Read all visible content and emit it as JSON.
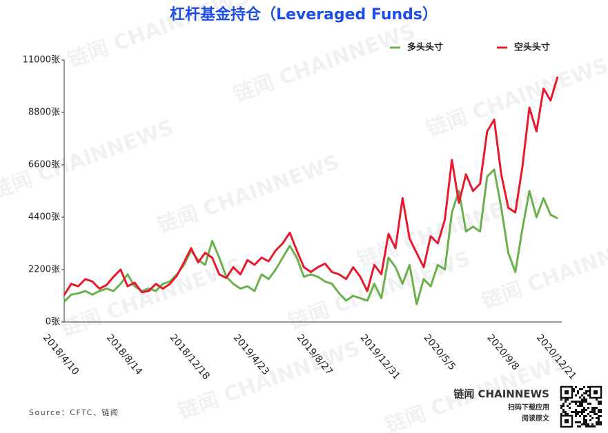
{
  "chart_data": {
    "type": "line",
    "title": "杠杆基金持仓（Leveraged Funds）",
    "categories": [
      "2018/4/10",
      null,
      null,
      null,
      null,
      null,
      null,
      null,
      null,
      "2018/8/14",
      null,
      null,
      null,
      null,
      null,
      null,
      null,
      null,
      "2018/12/18",
      null,
      null,
      null,
      null,
      null,
      null,
      null,
      null,
      "2019/4/23",
      null,
      null,
      null,
      null,
      null,
      null,
      null,
      null,
      "2019/8/27",
      null,
      null,
      null,
      null,
      null,
      null,
      null,
      null,
      "2019/12/31",
      null,
      null,
      null,
      null,
      null,
      null,
      null,
      null,
      "2020/5/5",
      null,
      null,
      null,
      null,
      null,
      null,
      null,
      null,
      "2020/9/8",
      null,
      null,
      null,
      null,
      null,
      null,
      "2020/12/21"
    ],
    "series": [
      {
        "name": "多头头寸",
        "color": "#6ab04c",
        "values": [
          850,
          1150,
          1200,
          1300,
          1150,
          1300,
          1400,
          1300,
          1600,
          2000,
          1500,
          1300,
          1400,
          1300,
          1600,
          1700,
          2000,
          2400,
          3000,
          2600,
          2400,
          3400,
          2700,
          1900,
          1600,
          1400,
          1500,
          1300,
          2000,
          1800,
          2200,
          2700,
          3200,
          2700,
          1900,
          2000,
          1900,
          1700,
          1600,
          1200,
          900,
          1100,
          1000,
          900,
          1600,
          1000,
          2700,
          2300,
          1600,
          2400,
          750,
          1800,
          1500,
          2400,
          2200,
          4600,
          5500,
          3800,
          4000,
          3800,
          6100,
          6400,
          4800,
          2900,
          2100,
          3900,
          5500,
          4400,
          5200,
          4500,
          4350
        ]
      },
      {
        "name": "空头头寸",
        "color": "#e8192c",
        "values": [
          1130,
          1600,
          1500,
          1800,
          1700,
          1400,
          1550,
          1900,
          2200,
          1500,
          1650,
          1250,
          1300,
          1600,
          1400,
          1600,
          1950,
          2500,
          3100,
          2500,
          2900,
          2700,
          2000,
          1850,
          2300,
          2000,
          2600,
          2400,
          2700,
          2550,
          3000,
          3300,
          3750,
          3000,
          2300,
          2100,
          2300,
          2450,
          2100,
          2000,
          1800,
          2300,
          1900,
          1300,
          2400,
          2000,
          3700,
          3100,
          5200,
          3500,
          2900,
          2300,
          3600,
          3300,
          4300,
          6800,
          5000,
          6200,
          5500,
          5800,
          8000,
          8500,
          6200,
          4800,
          4600,
          6500,
          9000,
          8000,
          9800,
          9300,
          10300
        ]
      }
    ],
    "ylim": [
      0,
      11000
    ],
    "yticks": [
      {
        "value": 0,
        "label": "0张"
      },
      {
        "value": 2200,
        "label": "2200张"
      },
      {
        "value": 4400,
        "label": "4400张"
      },
      {
        "value": 6600,
        "label": "6600张"
      },
      {
        "value": 8800,
        "label": "8800张"
      },
      {
        "value": 11000,
        "label": "11000张"
      }
    ],
    "grid": false,
    "legend": "top-right",
    "source": "Source：CFTC、链闻",
    "watermark": "链闻 CHAINNEWS",
    "brand": "链闻 CHAINNEWS",
    "brand_sub1": "扫码下载应用",
    "brand_sub2": "阅读原文"
  }
}
